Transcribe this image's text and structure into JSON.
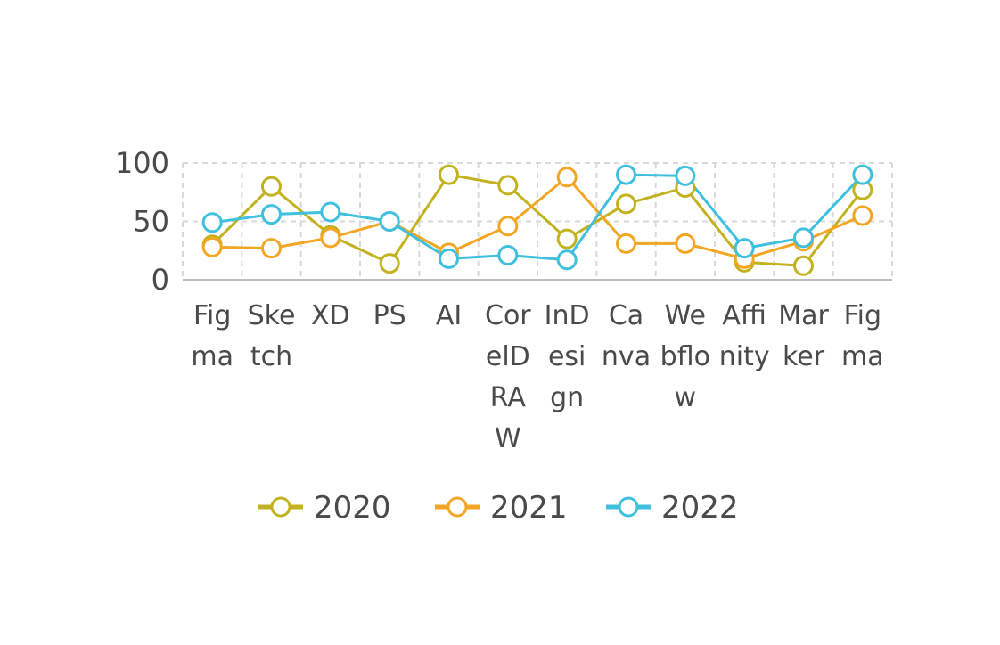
{
  "chart_data": {
    "type": "line",
    "categories": [
      [
        "Fig",
        "ma"
      ],
      [
        "Ske",
        "tch"
      ],
      [
        "XD"
      ],
      [
        "PS"
      ],
      [
        "AI"
      ],
      [
        "Cor",
        "elD",
        "RA",
        "W"
      ],
      [
        "InD",
        "esi",
        "gn"
      ],
      [
        "Ca",
        "nva"
      ],
      [
        "We",
        "bflo",
        "w"
      ],
      [
        "Affi",
        "nity"
      ],
      [
        "Mar",
        "ker"
      ],
      [
        "Fig",
        "ma"
      ]
    ],
    "series": [
      {
        "name": "2020",
        "color": "#c2b21f",
        "values": [
          30,
          80,
          38,
          14,
          90,
          81,
          35,
          65,
          79,
          15,
          12,
          77
        ]
      },
      {
        "name": "2021",
        "color": "#f2a623",
        "values": [
          28,
          27,
          36,
          50,
          23,
          46,
          88,
          31,
          31,
          18,
          33,
          55
        ]
      },
      {
        "name": "2022",
        "color": "#3ec0de",
        "values": [
          49,
          56,
          58,
          50,
          18,
          21,
          17,
          90,
          89,
          27,
          36,
          90
        ]
      }
    ],
    "yticks": [
      0,
      50,
      100
    ],
    "ylim": [
      0,
      100
    ],
    "grid": true,
    "legend_position": "bottom-center",
    "title": "",
    "xlabel": "",
    "ylabel": ""
  }
}
